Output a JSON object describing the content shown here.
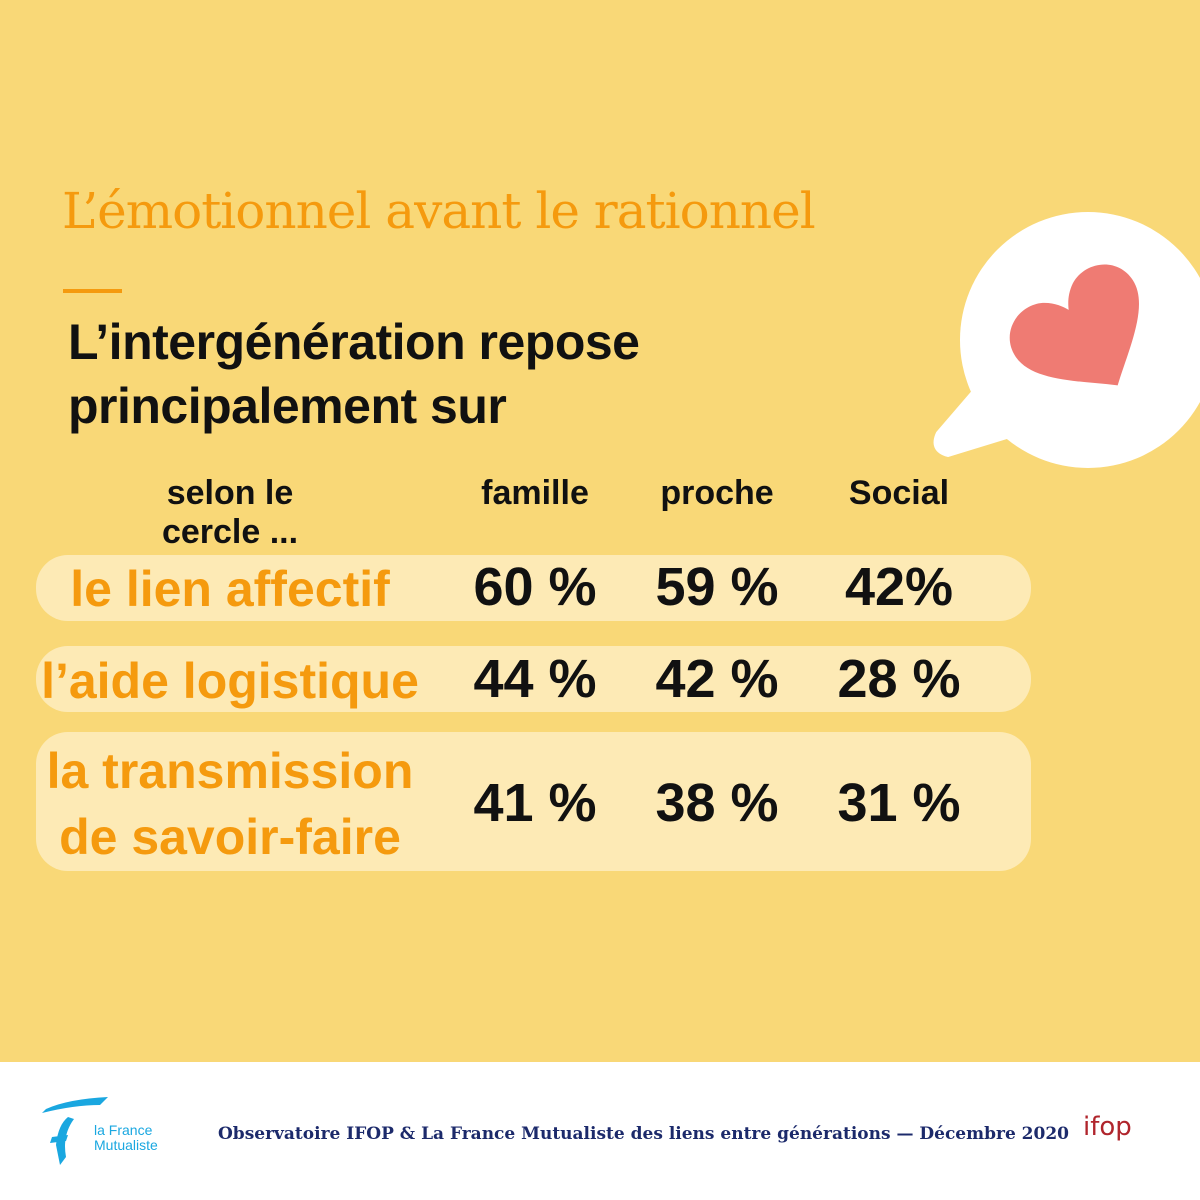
{
  "title": "L’émotionnel avant le rationnel",
  "subtitle_line1": "L’intergénération repose",
  "subtitle_line2": "principalement sur",
  "table": {
    "row_header": "selon le cercle ...",
    "columns": [
      "famille",
      "proche",
      "Social"
    ],
    "rows": [
      {
        "label": "le lien affectif",
        "values": [
          "60 %",
          "59 %",
          "42%"
        ]
      },
      {
        "label": "l’aide logistique",
        "values": [
          "44 %",
          "42 %",
          "28 %"
        ]
      },
      {
        "label_line1": "la transmission",
        "label_line2": "de savoir-faire",
        "values": [
          "41 %",
          "38 %",
          "31 %"
        ]
      }
    ]
  },
  "icon": "heart-speech-bubble-icon",
  "footer": {
    "logo_left_line1": "la France",
    "logo_left_line2": "Mutualiste",
    "text": "Observatoire IFOP & La France Mutualiste des liens entre générations — Décembre 2020",
    "logo_right": "ifop"
  },
  "colors": {
    "background": "#F9D877",
    "accent": "#F59A0E",
    "row": "#FDEAB5",
    "heart": "#EF7B73",
    "footer_text": "#1C2A6B"
  }
}
